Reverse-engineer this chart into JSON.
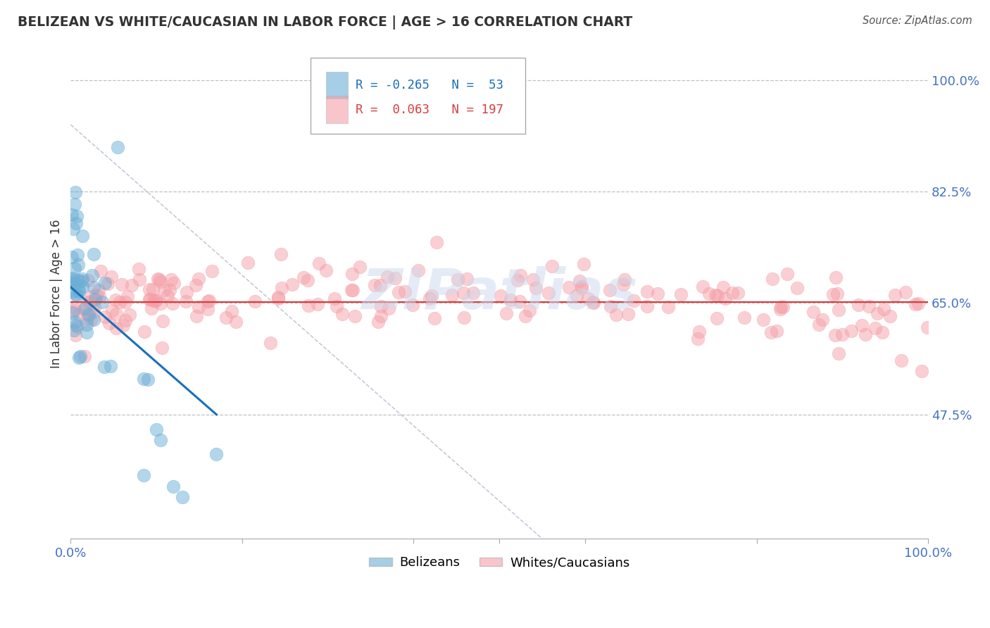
{
  "title": "BELIZEAN VS WHITE/CAUCASIAN IN LABOR FORCE | AGE > 16 CORRELATION CHART",
  "source": "Source: ZipAtlas.com",
  "ylabel": "In Labor Force | Age > 16",
  "watermark": "ZIPatlias",
  "xmin": 0.0,
  "xmax": 1.0,
  "ymin": 0.28,
  "ymax": 1.05,
  "yticks": [
    0.475,
    0.65,
    0.825,
    1.0
  ],
  "ytick_labels": [
    "47.5%",
    "65.0%",
    "82.5%",
    "100.0%"
  ],
  "blue_R": -0.265,
  "blue_N": 53,
  "pink_R": 0.063,
  "pink_N": 197,
  "blue_color": "#6baed6",
  "pink_color": "#f4a0a8",
  "blue_line_color": "#1a6fba",
  "pink_line_color": "#d93f3f",
  "tick_color": "#4472c4",
  "grid_color": "#c0c0c0",
  "background_color": "#ffffff",
  "title_color": "#333333",
  "source_color": "#555555"
}
